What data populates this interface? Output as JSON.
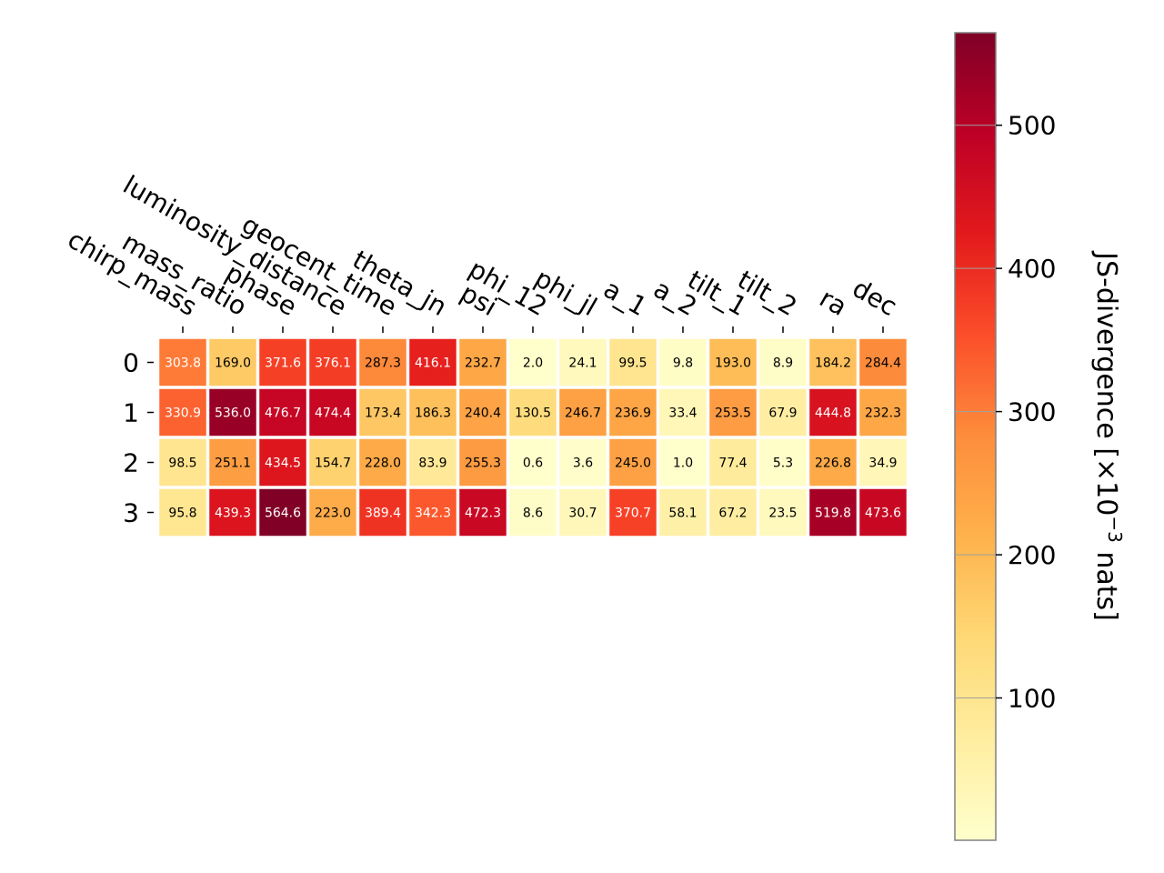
{
  "chart_data": {
    "type": "heatmap",
    "columns": [
      "chirp_mass",
      "mass_ratio",
      "phase",
      "luminosity_distance",
      "geocent_time",
      "theta_jn",
      "psi",
      "phi_12",
      "phi_jl",
      "a_1",
      "a_2",
      "tilt_1",
      "tilt_2",
      "ra",
      "dec"
    ],
    "rows": [
      "0",
      "1",
      "2",
      "3"
    ],
    "values": [
      [
        303.8,
        169.0,
        371.6,
        376.1,
        287.3,
        416.1,
        232.7,
        2.0,
        24.1,
        99.5,
        9.8,
        193.0,
        8.9,
        184.2,
        284.4
      ],
      [
        330.9,
        536.0,
        476.7,
        474.4,
        173.4,
        186.3,
        240.4,
        130.5,
        246.7,
        236.9,
        33.4,
        253.5,
        67.9,
        444.8,
        232.3
      ],
      [
        98.5,
        251.1,
        434.5,
        154.7,
        228.0,
        83.9,
        255.3,
        0.6,
        3.6,
        245.0,
        1.0,
        77.4,
        5.3,
        226.8,
        34.9
      ],
      [
        95.8,
        439.3,
        564.6,
        223.0,
        389.4,
        342.3,
        472.3,
        8.6,
        30.7,
        370.7,
        58.1,
        67.2,
        23.5,
        519.8,
        473.6
      ]
    ],
    "colorbar": {
      "label_main": "JS-divergence [×10",
      "label_sup": "−3",
      "label_end": " nats]",
      "range": [
        0.6,
        564.6
      ],
      "ticks": [
        100,
        200,
        300,
        400,
        500
      ],
      "colormap": "YlOrRd"
    }
  }
}
